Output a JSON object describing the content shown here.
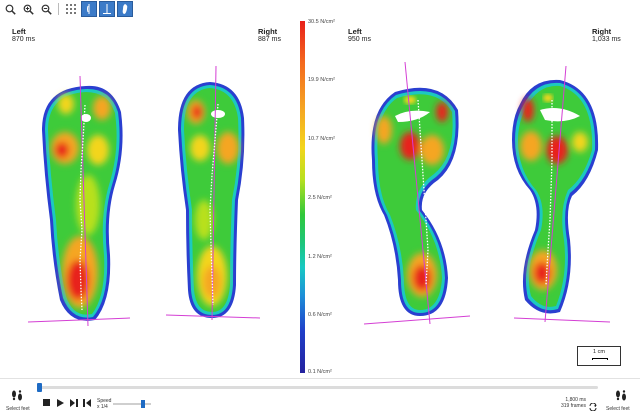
{
  "toolbar": {
    "icons": [
      "zoom-fit-icon",
      "zoom-in-icon",
      "zoom-out-icon",
      "grid-icon",
      "single-foot-view-icon",
      "two-feet-view-icon",
      "foot-outline-icon"
    ]
  },
  "panels": {
    "left1": {
      "side": "Left",
      "time": "870 ms"
    },
    "right1": {
      "side": "Right",
      "time": "887 ms"
    },
    "left2": {
      "side": "Left",
      "time": "950 ms"
    },
    "right2": {
      "side": "Right",
      "time": "1,033 ms"
    }
  },
  "colorbar": {
    "labels": [
      "30.5 N/cm²",
      "19.9 N/cm²",
      "10.7 N/cm²",
      "2.5 N/cm²",
      "1.2 N/cm²",
      "0.6 N/cm²",
      "0.1 N/cm²"
    ],
    "colors": [
      "#e8201a",
      "#f5a623",
      "#f3d51c",
      "#30c83a",
      "#18c9c3",
      "#1f3fc9",
      "#24229e"
    ]
  },
  "scale": {
    "label": "1 cm"
  },
  "playback": {
    "speed_label": "Speed",
    "speed_value": "x 1/4",
    "duration": "1,800 ms",
    "frames": "319 frames",
    "select_feet_left": "Select feet",
    "select_feet_right": "Select feet"
  }
}
